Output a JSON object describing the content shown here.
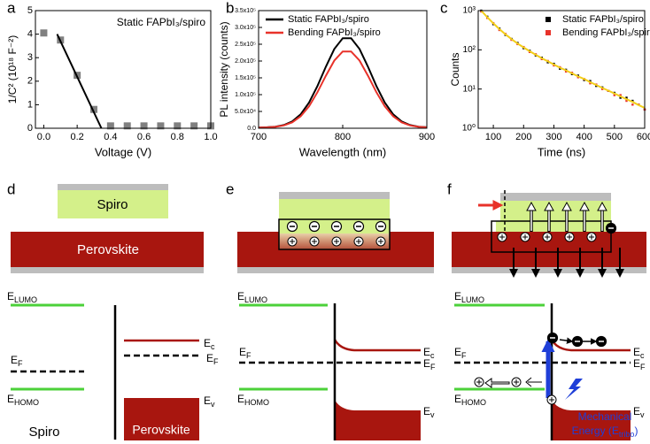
{
  "chart_data": [
    {
      "type": "scatter",
      "label": "a",
      "annotation": "Static FAPbI₃/spiro",
      "x_label": "Voltage (V)",
      "y_label": "1/C² (10¹⁸ F⁻²)",
      "x": [
        0.0,
        0.1,
        0.2,
        0.3,
        0.4,
        0.5,
        0.6,
        0.7,
        0.8,
        0.9,
        1.0
      ],
      "values": [
        4.05,
        3.75,
        2.25,
        0.8,
        0.1,
        0.1,
        0.1,
        0.1,
        0.1,
        0.1,
        0.1
      ],
      "color": "#808080",
      "marker": "square",
      "fit": {
        "x": [
          0.08,
          0.345
        ],
        "values": [
          4.0,
          0.0
        ],
        "color": "#000000"
      },
      "xlim": [
        -0.05,
        1.0
      ],
      "ylim": [
        0,
        5
      ],
      "xticks": [
        {
          "value": 0.0,
          "label": "0.0"
        },
        {
          "value": 0.2,
          "label": "0.2"
        },
        {
          "value": 0.4,
          "label": "0.4"
        },
        {
          "value": 0.6,
          "label": "0.6"
        },
        {
          "value": 0.8,
          "label": "0.8"
        },
        {
          "value": 1.0,
          "label": "1.0"
        }
      ],
      "yticks": [
        0,
        1,
        2,
        3,
        4,
        5
      ]
    },
    {
      "type": "line",
      "label": "b",
      "x_label": "Wavelength (nm)",
      "y_label": "PL intensity (counts)",
      "x": [
        700,
        710,
        720,
        730,
        740,
        750,
        760,
        770,
        780,
        790,
        800,
        810,
        820,
        830,
        840,
        850,
        860,
        870,
        880,
        890,
        900
      ],
      "series": [
        {
          "name": "Static FAPbI₃/spiro",
          "color": "#000000",
          "values": [
            2200,
            2900,
            4700,
            9500,
            20300,
            41200,
            76300,
            125700,
            183200,
            235800,
            267700,
            267700,
            235800,
            183200,
            125700,
            76300,
            41200,
            20300,
            9500,
            4700,
            2900
          ]
        },
        {
          "name": "Bending FAPbI₃/spiro",
          "color": "#e8322a",
          "values": [
            2200,
            2700,
            4300,
            8300,
            17600,
            35400,
            65300,
            107300,
            156300,
            201200,
            228300,
            228300,
            201200,
            156300,
            107300,
            65300,
            35400,
            17600,
            8300,
            4300,
            2700
          ]
        }
      ],
      "legend": "upper-right",
      "xlim": [
        700,
        900
      ],
      "ylim": [
        0,
        350000
      ],
      "xticks": [
        700,
        800,
        900
      ],
      "yticks": [
        {
          "value": 0,
          "label": "0.0"
        },
        {
          "value": 50000,
          "label": "5.0x10⁴"
        },
        {
          "value": 100000,
          "label": "1.0x10⁵"
        },
        {
          "value": 150000,
          "label": "1.5x10⁵"
        },
        {
          "value": 200000,
          "label": "2.0x10⁵"
        },
        {
          "value": 250000,
          "label": "2.5x10⁵"
        },
        {
          "value": 300000,
          "label": "3.0x10⁵"
        },
        {
          "value": 350000,
          "label": "3.5x10⁵"
        }
      ]
    },
    {
      "type": "scatter",
      "label": "c",
      "log_y": true,
      "marker": "square",
      "x_label": "Time (ns)",
      "y_label": "Counts",
      "x": [
        60,
        80,
        100,
        120,
        140,
        160,
        180,
        200,
        220,
        240,
        260,
        280,
        300,
        320,
        340,
        360,
        380,
        400,
        420,
        440,
        460,
        480,
        500,
        520,
        540,
        560,
        580,
        600
      ],
      "series": [
        {
          "name": "Static FAPbI₃/spiro",
          "color": "#000000",
          "values": [
            1000,
            700,
            450,
            350,
            240,
            190,
            150,
            110,
            95,
            72,
            63,
            48,
            44,
            33,
            31,
            24,
            22,
            17,
            16,
            12,
            11,
            9,
            8,
            6,
            6,
            5,
            4,
            3
          ]
        },
        {
          "name": "Bending FAPbI₃/spiro",
          "color": "#e8322a",
          "values": [
            950,
            650,
            480,
            320,
            255,
            180,
            140,
            118,
            88,
            77,
            58,
            52,
            40,
            36,
            28,
            26,
            20,
            18,
            14,
            13,
            10,
            9,
            7,
            7,
            5,
            4,
            4,
            3
          ]
        }
      ],
      "fit": {
        "color": "#f2cf1a",
        "values": [
          1000,
          679,
          473,
          338,
          249,
          188,
          145,
          115,
          92,
          75,
          61,
          51,
          42,
          35,
          30,
          25,
          21,
          18,
          15,
          12.7,
          10.7,
          9.1,
          7.7,
          6.5,
          5.5,
          4.7,
          3.9,
          3.3
        ]
      },
      "legend": "upper-right",
      "xlim": [
        50,
        600
      ],
      "ylim": [
        1,
        1000
      ],
      "xticks": [
        100,
        200,
        300,
        400,
        500,
        600
      ],
      "yticks": [
        {
          "value": 1,
          "label": "10⁰"
        },
        {
          "value": 10,
          "label": "10¹"
        },
        {
          "value": 100,
          "label": "10²"
        },
        {
          "value": 1000,
          "label": "10³"
        }
      ]
    }
  ],
  "diagrams": [
    {
      "label": "d",
      "top_layer": "Spiro",
      "bottom_layer": "Perovskite",
      "left_material": "Spiro",
      "right_material": "Perovskite",
      "levels": {
        "lumo": [
          "E",
          "LUMO"
        ],
        "fermi_left": [
          "E",
          "F"
        ],
        "homo": [
          "E",
          "HOMO"
        ],
        "conduction": [
          "E",
          "c"
        ],
        "fermi_right": [
          "E",
          "F"
        ],
        "valence": [
          "E",
          "v"
        ]
      }
    },
    {
      "label": "e",
      "levels": {
        "lumo": [
          "E",
          "LUMO"
        ],
        "fermi_left": [
          "E",
          "F"
        ],
        "homo": [
          "E",
          "HOMO"
        ],
        "conduction": [
          "E",
          "c"
        ],
        "fermi_right": [
          "E",
          "F"
        ],
        "valence": [
          "E",
          "v"
        ]
      }
    },
    {
      "label": "f",
      "levels": {
        "lumo": [
          "E",
          "LUMO"
        ],
        "fermi_left": [
          "E",
          "F"
        ],
        "homo": [
          "E",
          "HOMO"
        ],
        "conduction": [
          "E",
          "c"
        ],
        "fermi_right": [
          "E",
          "F"
        ],
        "valence": [
          "E",
          "v"
        ]
      },
      "energy_note": {
        "line1": "Mechanical",
        "line2": [
          "Energy (E",
          "tribo",
          ")"
        ]
      }
    }
  ]
}
